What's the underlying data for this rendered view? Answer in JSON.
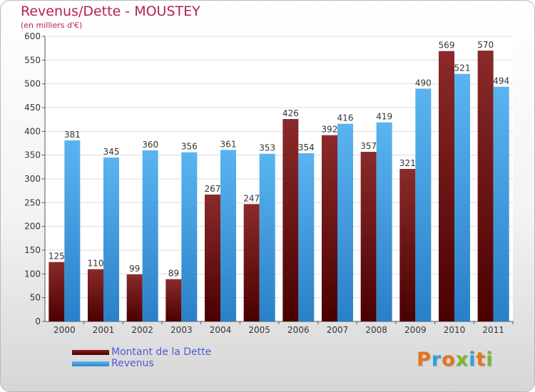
{
  "chart_data": {
    "type": "bar",
    "title": "Revenus/Dette - MOUSTEY",
    "subtitle": "(en milliers d'€)",
    "categories": [
      "2000",
      "2001",
      "2002",
      "2003",
      "2004",
      "2005",
      "2006",
      "2007",
      "2008",
      "2009",
      "2010",
      "2011"
    ],
    "series": [
      {
        "name": "Montant de la Dette",
        "color": "#8b1d1d",
        "values": [
          125,
          110,
          99,
          89,
          267,
          247,
          426,
          392,
          357,
          321,
          569,
          570
        ]
      },
      {
        "name": "Revenus",
        "color": "#3f9fe6",
        "values": [
          381,
          345,
          360,
          356,
          361,
          353,
          354,
          416,
          419,
          490,
          521,
          494
        ]
      }
    ],
    "ylim": [
      0,
      600
    ],
    "yticks": [
      0,
      50,
      100,
      150,
      200,
      250,
      300,
      350,
      400,
      450,
      500,
      550,
      600
    ],
    "grid": true,
    "legend": "bottom-left"
  },
  "logo": {
    "text": "Proxiti",
    "colors": [
      "#e8731c",
      "#2ea3d8",
      "#e8731c",
      "#7ab731",
      "#2ea3d8",
      "#e8731c",
      "#7ab731"
    ]
  }
}
